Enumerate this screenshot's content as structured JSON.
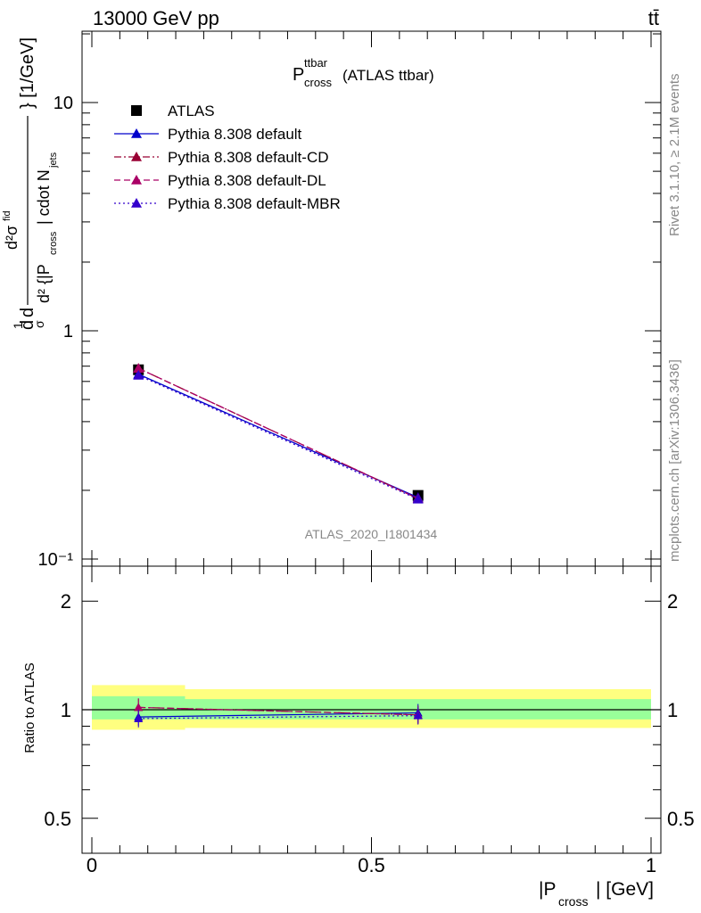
{
  "header": {
    "energy_label": "13000 GeV pp",
    "process_label": "tt̄"
  },
  "side": {
    "rivet_label": "Rivet 3.1.10, ≥ 2.1M events",
    "mcplots_label": "mcplots.cern.ch [arXiv:1306.3436]"
  },
  "chart_data": [
    {
      "type": "line",
      "title_main": "P",
      "title_sup": "ttbar",
      "title_sub": "cross",
      "title_rest": "(ATLAS ttbar)",
      "ylabel": "d²σ/d{|P_cross| cdot N_jets} [1/GeV] (normalized)",
      "analysis_label": "ATLAS_2020_I1801434",
      "yscale": "log",
      "xlim": [
        0,
        1
      ],
      "ylim": [
        0.1,
        20
      ],
      "yticks": [
        {
          "v": 0.1,
          "label": "10⁻¹"
        },
        {
          "v": 1,
          "label": "1"
        },
        {
          "v": 10,
          "label": "10"
        }
      ],
      "x": [
        0.0833,
        0.5833
      ],
      "series": [
        {
          "name": "ATLAS",
          "values": [
            0.675,
            0.19
          ],
          "color": "#000000",
          "marker": "square",
          "dash": "none"
        },
        {
          "name": "Pythia 8.308 default",
          "values": [
            0.645,
            0.186
          ],
          "color": "#0000cc",
          "marker": "triangle",
          "dash": "solid"
        },
        {
          "name": "Pythia 8.308 default-CD",
          "values": [
            0.685,
            0.184
          ],
          "color": "#990033",
          "marker": "triangle",
          "dash": "dashdot"
        },
        {
          "name": "Pythia 8.308 default-DL",
          "values": [
            0.685,
            0.184
          ],
          "color": "#aa0066",
          "marker": "triangle",
          "dash": "dash"
        },
        {
          "name": "Pythia 8.308 default-MBR",
          "values": [
            0.638,
            0.183
          ],
          "color": "#3300cc",
          "marker": "triangle",
          "dash": "dot"
        }
      ]
    },
    {
      "type": "line",
      "ylabel": "Ratio to ATLAS",
      "xlabel_main": "|P",
      "xlabel_sub": "cross",
      "xlabel_rest": "| [GeV]",
      "yscale": "log",
      "xlim": [
        0,
        1
      ],
      "ylim": [
        0.4,
        2.5
      ],
      "yticks": [
        {
          "v": 0.5,
          "label": "0.5"
        },
        {
          "v": 1,
          "label": "1"
        },
        {
          "v": 2,
          "label": "2"
        }
      ],
      "xticks": [
        {
          "v": 0,
          "label": "0"
        },
        {
          "v": 0.5,
          "label": "0.5"
        },
        {
          "v": 1,
          "label": "1"
        }
      ],
      "bands": [
        {
          "x": [
            0,
            0.1667
          ],
          "yellow": [
            0.88,
            1.17
          ],
          "green": [
            0.94,
            1.09
          ]
        },
        {
          "x": [
            0.1667,
            1.0
          ],
          "yellow": [
            0.89,
            1.14
          ],
          "green": [
            0.94,
            1.07
          ]
        }
      ],
      "x": [
        0.0833,
        0.5833
      ],
      "series": [
        {
          "name": "Pythia 8.308 default",
          "values": [
            0.955,
            0.98
          ],
          "color": "#0000cc",
          "dash": "solid"
        },
        {
          "name": "Pythia 8.308 default-CD",
          "values": [
            1.015,
            0.968
          ],
          "color": "#990033",
          "dash": "dashdot"
        },
        {
          "name": "Pythia 8.308 default-DL",
          "values": [
            1.015,
            0.968
          ],
          "color": "#aa0066",
          "dash": "dash"
        },
        {
          "name": "Pythia 8.308 default-MBR",
          "values": [
            0.945,
            0.963
          ],
          "color": "#3300cc",
          "dash": "dot"
        }
      ]
    }
  ]
}
